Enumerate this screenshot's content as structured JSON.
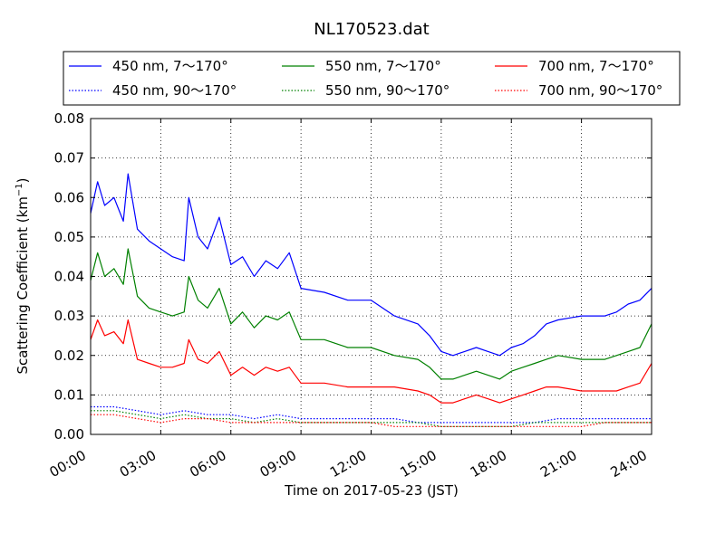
{
  "chart_data": {
    "type": "line",
    "title": "NL170523.dat",
    "xlabel": "Time on 2017-05-23 (JST)",
    "ylabel": "Scattering Coefficient (km",
    "ylabel_sup": "−1",
    "ylabel_close": ")",
    "xlim": [
      0,
      24
    ],
    "ylim": [
      0,
      0.08
    ],
    "x_unit": "hours",
    "grid": true,
    "legend_position": "top",
    "x_ticks": [
      {
        "value": 0,
        "label": "00:00"
      },
      {
        "value": 3,
        "label": "03:00"
      },
      {
        "value": 6,
        "label": "06:00"
      },
      {
        "value": 9,
        "label": "09:00"
      },
      {
        "value": 12,
        "label": "12:00"
      },
      {
        "value": 15,
        "label": "15:00"
      },
      {
        "value": 18,
        "label": "18:00"
      },
      {
        "value": 21,
        "label": "21:00"
      },
      {
        "value": 24,
        "label": "24:00"
      }
    ],
    "y_ticks": [
      {
        "value": 0,
        "label": "0.00"
      },
      {
        "value": 0.01,
        "label": "0.01"
      },
      {
        "value": 0.02,
        "label": "0.02"
      },
      {
        "value": 0.03,
        "label": "0.03"
      },
      {
        "value": 0.04,
        "label": "0.04"
      },
      {
        "value": 0.05,
        "label": "0.05"
      },
      {
        "value": 0.06,
        "label": "0.06"
      },
      {
        "value": 0.07,
        "label": "0.07"
      },
      {
        "value": 0.08,
        "label": "0.08"
      }
    ],
    "series": [
      {
        "name": "450 nm, 7～170°",
        "color": "#0000ff",
        "style": "solid",
        "x": [
          0,
          0.3,
          0.6,
          1.0,
          1.4,
          1.6,
          2.0,
          2.5,
          3.0,
          3.5,
          4.0,
          4.2,
          4.6,
          5.0,
          5.5,
          6.0,
          6.5,
          7.0,
          7.5,
          8.0,
          8.5,
          9.0,
          10.0,
          11.0,
          12.0,
          13.0,
          14.0,
          14.5,
          15.0,
          15.5,
          16.0,
          16.5,
          17.0,
          17.5,
          18.0,
          18.5,
          19.0,
          19.5,
          20.0,
          21.0,
          22.0,
          22.5,
          23.0,
          23.5,
          24.0
        ],
        "y": [
          0.056,
          0.064,
          0.058,
          0.06,
          0.054,
          0.066,
          0.052,
          0.049,
          0.047,
          0.045,
          0.044,
          0.06,
          0.05,
          0.047,
          0.055,
          0.043,
          0.045,
          0.04,
          0.044,
          0.042,
          0.046,
          0.037,
          0.036,
          0.034,
          0.034,
          0.03,
          0.028,
          0.025,
          0.021,
          0.02,
          0.021,
          0.022,
          0.021,
          0.02,
          0.022,
          0.023,
          0.025,
          0.028,
          0.029,
          0.03,
          0.03,
          0.031,
          0.033,
          0.034,
          0.037
        ]
      },
      {
        "name": "550 nm, 7～170°",
        "color": "#008000",
        "style": "solid",
        "x": [
          0,
          0.3,
          0.6,
          1.0,
          1.4,
          1.6,
          2.0,
          2.5,
          3.0,
          3.5,
          4.0,
          4.2,
          4.6,
          5.0,
          5.5,
          6.0,
          6.5,
          7.0,
          7.5,
          8.0,
          8.5,
          9.0,
          10.0,
          11.0,
          12.0,
          13.0,
          14.0,
          14.5,
          15.0,
          15.5,
          16.0,
          16.5,
          17.0,
          17.5,
          18.0,
          18.5,
          19.0,
          19.5,
          20.0,
          21.0,
          22.0,
          22.5,
          23.0,
          23.5,
          24.0
        ],
        "y": [
          0.039,
          0.046,
          0.04,
          0.042,
          0.038,
          0.047,
          0.035,
          0.032,
          0.031,
          0.03,
          0.031,
          0.04,
          0.034,
          0.032,
          0.037,
          0.028,
          0.031,
          0.027,
          0.03,
          0.029,
          0.031,
          0.024,
          0.024,
          0.022,
          0.022,
          0.02,
          0.019,
          0.017,
          0.014,
          0.014,
          0.015,
          0.016,
          0.015,
          0.014,
          0.016,
          0.017,
          0.018,
          0.019,
          0.02,
          0.019,
          0.019,
          0.02,
          0.021,
          0.022,
          0.028
        ]
      },
      {
        "name": "700 nm, 7～170°",
        "color": "#ff0000",
        "style": "solid",
        "x": [
          0,
          0.3,
          0.6,
          1.0,
          1.4,
          1.6,
          2.0,
          2.5,
          3.0,
          3.5,
          4.0,
          4.2,
          4.6,
          5.0,
          5.5,
          6.0,
          6.5,
          7.0,
          7.5,
          8.0,
          8.5,
          9.0,
          10.0,
          11.0,
          12.0,
          13.0,
          14.0,
          14.5,
          15.0,
          15.5,
          16.0,
          16.5,
          17.0,
          17.5,
          18.0,
          18.5,
          19.0,
          19.5,
          20.0,
          21.0,
          22.0,
          22.5,
          23.0,
          23.5,
          24.0
        ],
        "y": [
          0.024,
          0.029,
          0.025,
          0.026,
          0.023,
          0.029,
          0.019,
          0.018,
          0.017,
          0.017,
          0.018,
          0.024,
          0.019,
          0.018,
          0.021,
          0.015,
          0.017,
          0.015,
          0.017,
          0.016,
          0.017,
          0.013,
          0.013,
          0.012,
          0.012,
          0.012,
          0.011,
          0.01,
          0.008,
          0.008,
          0.009,
          0.01,
          0.009,
          0.008,
          0.009,
          0.01,
          0.011,
          0.012,
          0.012,
          0.011,
          0.011,
          0.011,
          0.012,
          0.013,
          0.018
        ]
      },
      {
        "name": "450 nm, 90～170°",
        "color": "#0000ff",
        "style": "dotted",
        "x": [
          0,
          1,
          2,
          3,
          4,
          5,
          6,
          7,
          8,
          9,
          10,
          11,
          12,
          13,
          14,
          15,
          16,
          17,
          18,
          19,
          20,
          21,
          22,
          23,
          24
        ],
        "y": [
          0.007,
          0.007,
          0.006,
          0.005,
          0.006,
          0.005,
          0.005,
          0.004,
          0.005,
          0.004,
          0.004,
          0.004,
          0.004,
          0.004,
          0.003,
          0.003,
          0.003,
          0.003,
          0.003,
          0.003,
          0.004,
          0.004,
          0.004,
          0.004,
          0.004
        ]
      },
      {
        "name": "550 nm, 90～170°",
        "color": "#008000",
        "style": "dotted",
        "x": [
          0,
          1,
          2,
          3,
          4,
          5,
          6,
          7,
          8,
          9,
          10,
          11,
          12,
          13,
          14,
          15,
          16,
          17,
          18,
          19,
          20,
          21,
          22,
          23,
          24
        ],
        "y": [
          0.006,
          0.006,
          0.005,
          0.004,
          0.005,
          0.004,
          0.004,
          0.003,
          0.004,
          0.003,
          0.003,
          0.003,
          0.003,
          0.003,
          0.003,
          0.002,
          0.002,
          0.002,
          0.002,
          0.003,
          0.003,
          0.003,
          0.003,
          0.003,
          0.003
        ]
      },
      {
        "name": "700 nm, 90～170°",
        "color": "#ff0000",
        "style": "dotted",
        "x": [
          0,
          1,
          2,
          3,
          4,
          5,
          6,
          7,
          8,
          9,
          10,
          11,
          12,
          13,
          14,
          15,
          16,
          17,
          18,
          19,
          20,
          21,
          22,
          23,
          24
        ],
        "y": [
          0.005,
          0.005,
          0.004,
          0.003,
          0.004,
          0.004,
          0.003,
          0.003,
          0.003,
          0.003,
          0.003,
          0.003,
          0.003,
          0.002,
          0.002,
          0.002,
          0.002,
          0.002,
          0.002,
          0.002,
          0.002,
          0.002,
          0.003,
          0.003,
          0.003
        ]
      }
    ],
    "legend_order": [
      0,
      1,
      2,
      3,
      4,
      5
    ]
  }
}
